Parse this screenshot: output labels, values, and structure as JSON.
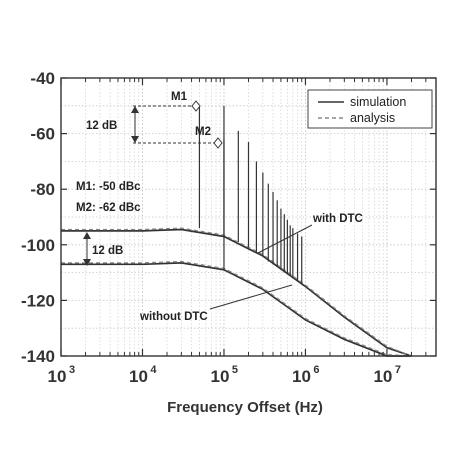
{
  "chart_data": {
    "type": "line",
    "xlabel": "Frequency Offset (Hz)",
    "ylabel": "",
    "xscale": "log",
    "xlim": [
      1000,
      40000000
    ],
    "ylim": [
      -140,
      -40
    ],
    "grid": true,
    "legend_position": "top-right",
    "x_ticks": [
      {
        "base": "10",
        "exp": "3",
        "value": 1000
      },
      {
        "base": "10",
        "exp": "4",
        "value": 10000
      },
      {
        "base": "10",
        "exp": "5",
        "value": 100000
      },
      {
        "base": "10",
        "exp": "6",
        "value": 1000000
      },
      {
        "base": "10",
        "exp": "7",
        "value": 10000000
      }
    ],
    "y_ticks": [
      "-40",
      "-60",
      "-80",
      "-100",
      "-120",
      "-140"
    ],
    "legend": {
      "simulation": "simulation",
      "analysis": "analysis"
    },
    "series": [
      {
        "name": "simulation",
        "style": "solid",
        "color": "#333333",
        "curves": [
          {
            "label": "with DTC",
            "x": [
              1000,
              10000,
              30000,
              100000,
              300000,
              1000000,
              3000000,
              10000000,
              20000000
            ],
            "y": [
              -95,
              -95,
              -94.5,
              -97,
              -104,
              -115,
              -126,
              -137,
              -141
            ]
          },
          {
            "label": "without DTC",
            "x": [
              1000,
              10000,
              30000,
              100000,
              300000,
              1000000,
              3000000,
              10000000,
              20000000
            ],
            "y": [
              -107,
              -107,
              -106.5,
              -109,
              -116,
              -127,
              -134,
              -140,
              -142
            ]
          }
        ]
      },
      {
        "name": "analysis",
        "style": "dashed",
        "color": "#888888",
        "curves": [
          {
            "label": "with DTC",
            "x": [
              1000,
              10000,
              30000,
              100000,
              300000,
              1000000,
              3000000,
              10000000,
              20000000
            ],
            "y": [
              -94.5,
              -94.5,
              -94,
              -96.5,
              -103.5,
              -114.5,
              -125.5,
              -136.5,
              -140.5
            ]
          },
          {
            "label": "without DTC",
            "x": [
              1000,
              10000,
              30000,
              100000,
              300000,
              1000000,
              3000000,
              10000000,
              20000000
            ],
            "y": [
              -106.5,
              -106.5,
              -106,
              -108.5,
              -115.5,
              -126.5,
              -133.5,
              -139.5,
              -141.5
            ]
          }
        ]
      }
    ],
    "spurs": [
      {
        "x": 50000,
        "top": -50,
        "base": -94
      },
      {
        "x": 100000,
        "top": -62,
        "base": -97
      },
      {
        "x": 150000,
        "top": -59,
        "base": -99
      },
      {
        "x": 200000,
        "top": -63,
        "base": -101
      },
      {
        "x": 250000,
        "top": -70,
        "base": -103
      },
      {
        "x": 300000,
        "top": -74,
        "base": -104
      },
      {
        "x": 350000,
        "top": -78,
        "base": -106
      },
      {
        "x": 400000,
        "top": -81,
        "base": -107
      },
      {
        "x": 450000,
        "top": -84,
        "base": -108
      },
      {
        "x": 500000,
        "top": -87,
        "base": -109
      },
      {
        "x": 550000,
        "top": -89,
        "base": -110
      },
      {
        "x": 600000,
        "top": -91,
        "base": -110.5
      },
      {
        "x": 650000,
        "top": -93,
        "base": -111
      },
      {
        "x": 700000,
        "top": -94,
        "base": -112
      },
      {
        "x": 800000,
        "top": -96,
        "base": -113
      },
      {
        "x": 900000,
        "top": -97,
        "base": -114
      },
      {
        "x": 100000,
        "top": -50,
        "base": -109
      }
    ],
    "markers": [
      {
        "label": "M1",
        "x": 50000,
        "y": -50
      },
      {
        "label": "M2",
        "x": 100000,
        "y": -62
      }
    ],
    "annotations": {
      "gap_top": "12 dB",
      "gap_bottom": "12 dB",
      "m1_value": "M1: -50 dBc",
      "m2_value": "M2: -62 dBc",
      "with_dtc": "with DTC",
      "without_dtc": "without DTC"
    }
  }
}
